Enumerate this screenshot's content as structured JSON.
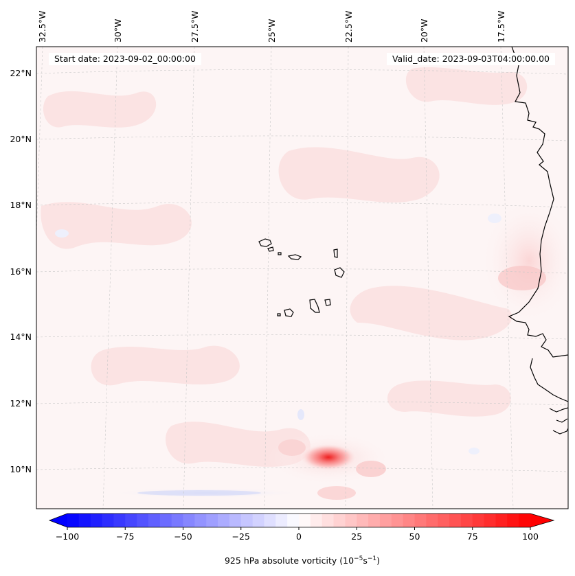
{
  "header": {
    "start_date": "Start date: 2023-09-02_00:00:00",
    "valid_date": "Valid_date: 2023-09-03T04:00:00.00"
  },
  "lon_labels": [
    "32.5°W",
    "30°W",
    "27.5°W",
    "25°W",
    "22.5°W",
    "20°W",
    "17.5°W"
  ],
  "lat_labels": [
    "22°N",
    "20°N",
    "18°N",
    "16°N",
    "14°N",
    "12°N",
    "10°N"
  ],
  "colorbar": {
    "label": "925 hPa absolute vorticity (10",
    "label_sup1": "−5",
    "label_mid": "s",
    "label_sup2": "−1",
    "label_close": ")",
    "ticks": [
      "−100",
      "−75",
      "−50",
      "−25",
      "0",
      "25",
      "50",
      "75",
      "100"
    ],
    "min": -100,
    "max": 100,
    "steps": 40,
    "low_color": "#0000ff",
    "mid_color": "#ffffff",
    "high_color": "#ff0000",
    "extend": "both"
  },
  "field": {
    "background_color": "#fdf5f5",
    "feature_color": "#fce4e4"
  }
}
